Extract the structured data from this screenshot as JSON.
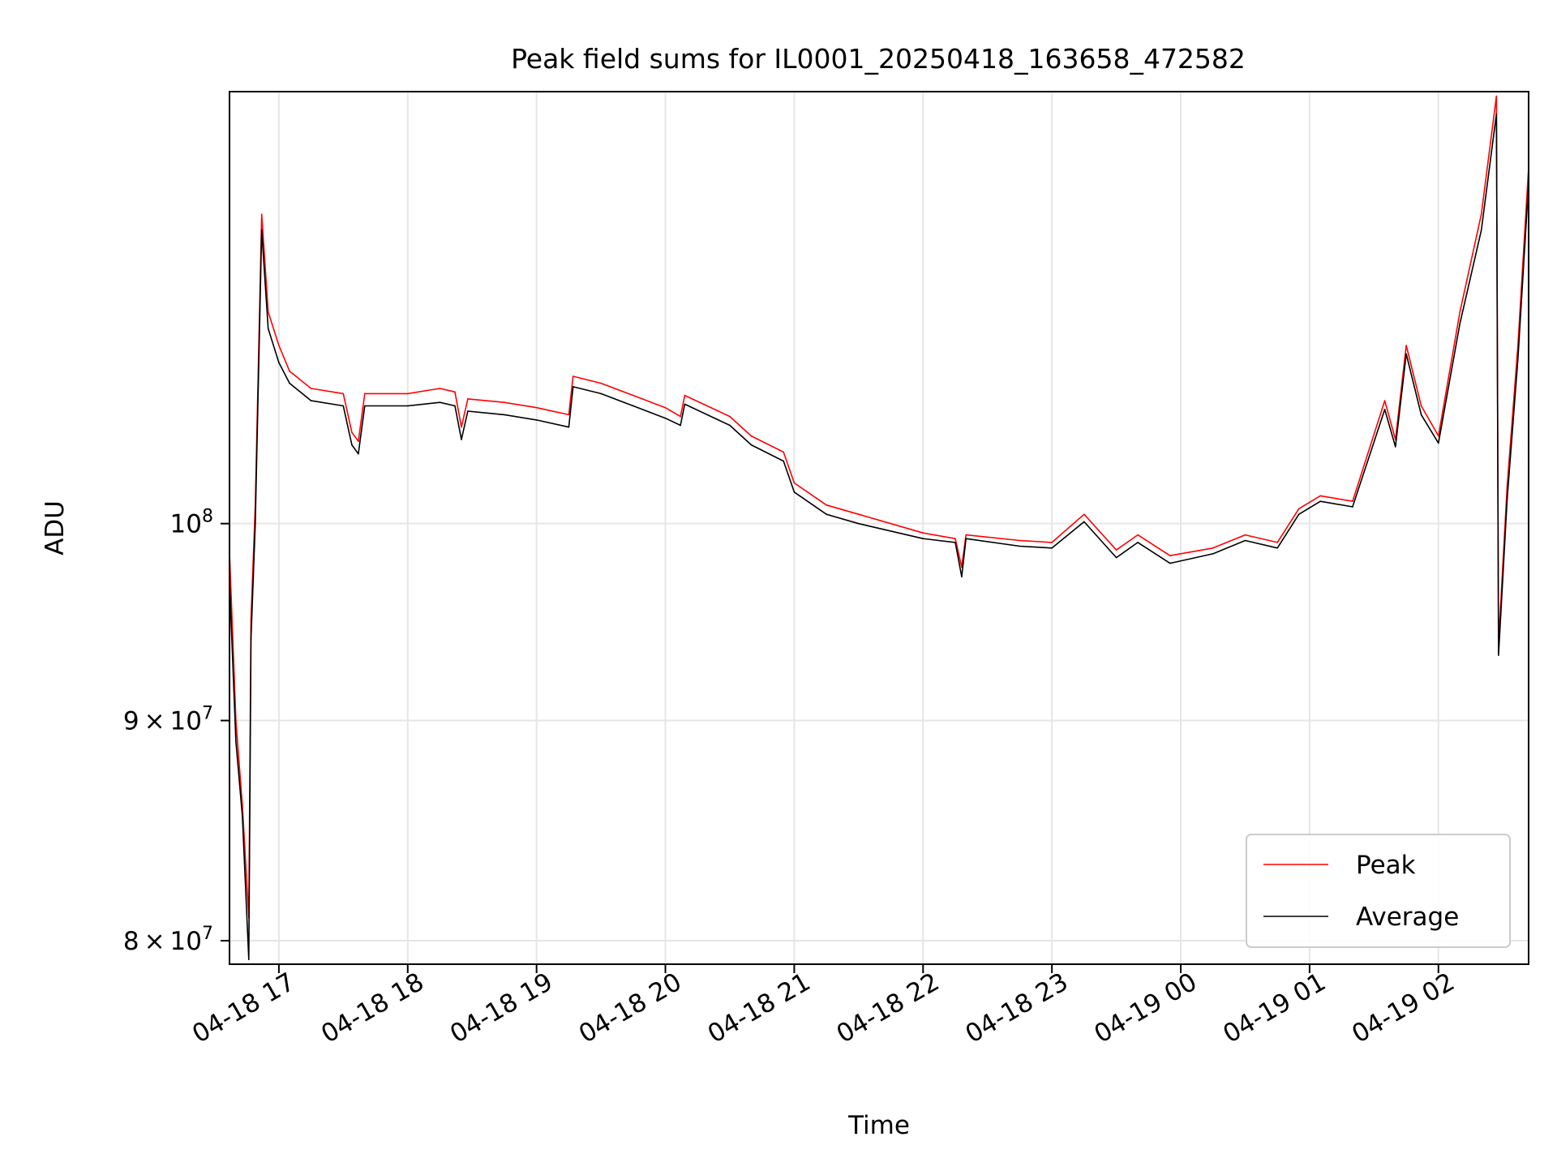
{
  "chart_data": {
    "type": "line",
    "title": "Peak field sums for IL0001_20250418_163658_472582",
    "xlabel": "Time",
    "ylabel": "ADU",
    "y_scale": "log",
    "grid": true,
    "legend_position": "lower-right",
    "xlim": [
      "2025-04-18 16:37",
      "2025-04-19 02:42"
    ],
    "ylim": [
      79000000,
      126000000
    ],
    "x_ticks": [
      {
        "value": "2025-04-18 17:00",
        "label": "04-18 17"
      },
      {
        "value": "2025-04-18 18:00",
        "label": "04-18 18"
      },
      {
        "value": "2025-04-18 19:00",
        "label": "04-18 19"
      },
      {
        "value": "2025-04-18 20:00",
        "label": "04-18 20"
      },
      {
        "value": "2025-04-18 21:00",
        "label": "04-18 21"
      },
      {
        "value": "2025-04-18 22:00",
        "label": "04-18 22"
      },
      {
        "value": "2025-04-18 23:00",
        "label": "04-18 23"
      },
      {
        "value": "2025-04-19 00:00",
        "label": "04-19 00"
      },
      {
        "value": "2025-04-19 01:00",
        "label": "04-19 01"
      },
      {
        "value": "2025-04-19 02:00",
        "label": "04-19 02"
      }
    ],
    "y_ticks": [
      {
        "value": 80000000,
        "mantissa": "8",
        "exponent": "7"
      },
      {
        "value": 90000000,
        "mantissa": "9",
        "exponent": "7"
      },
      {
        "value": 100000000,
        "mantissa": "",
        "exponent": "8"
      }
    ],
    "series": [
      {
        "name": "Peak",
        "color": "#ff0000",
        "points": [
          [
            "2025-04-18 16:37",
            98500000
          ],
          [
            "2025-04-18 16:40",
            90000000
          ],
          [
            "2025-04-18 16:43",
            86000000
          ],
          [
            "2025-04-18 16:46",
            81000000
          ],
          [
            "2025-04-18 16:47",
            95000000
          ],
          [
            "2025-04-18 16:49",
            101000000
          ],
          [
            "2025-04-18 16:52",
            118000000
          ],
          [
            "2025-04-18 16:55",
            112000000
          ],
          [
            "2025-04-18 17:00",
            110000000
          ],
          [
            "2025-04-18 17:05",
            108500000
          ],
          [
            "2025-04-18 17:15",
            107500000
          ],
          [
            "2025-04-18 17:30",
            107200000
          ],
          [
            "2025-04-18 17:34",
            105000000
          ],
          [
            "2025-04-18 17:37",
            104500000
          ],
          [
            "2025-04-18 17:40",
            107200000
          ],
          [
            "2025-04-18 18:00",
            107200000
          ],
          [
            "2025-04-18 18:15",
            107500000
          ],
          [
            "2025-04-18 18:22",
            107300000
          ],
          [
            "2025-04-18 18:25",
            105300000
          ],
          [
            "2025-04-18 18:28",
            106900000
          ],
          [
            "2025-04-18 18:45",
            106700000
          ],
          [
            "2025-04-18 19:00",
            106400000
          ],
          [
            "2025-04-18 19:15",
            106000000
          ],
          [
            "2025-04-18 19:17",
            108200000
          ],
          [
            "2025-04-18 19:30",
            107800000
          ],
          [
            "2025-04-18 19:45",
            107100000
          ],
          [
            "2025-04-18 20:00",
            106400000
          ],
          [
            "2025-04-18 20:07",
            105900000
          ],
          [
            "2025-04-18 20:09",
            107100000
          ],
          [
            "2025-04-18 20:30",
            105900000
          ],
          [
            "2025-04-18 20:40",
            104800000
          ],
          [
            "2025-04-18 20:55",
            103900000
          ],
          [
            "2025-04-18 21:00",
            102200000
          ],
          [
            "2025-04-18 21:15",
            101000000
          ],
          [
            "2025-04-18 21:30",
            100500000
          ],
          [
            "2025-04-18 22:00",
            99500000
          ],
          [
            "2025-04-18 22:15",
            99200000
          ],
          [
            "2025-04-18 22:18",
            97700000
          ],
          [
            "2025-04-18 22:20",
            99400000
          ],
          [
            "2025-04-18 22:45",
            99100000
          ],
          [
            "2025-04-18 23:00",
            99000000
          ],
          [
            "2025-04-18 23:15",
            100500000
          ],
          [
            "2025-04-18 23:30",
            98600000
          ],
          [
            "2025-04-18 23:40",
            99400000
          ],
          [
            "2025-04-18 23:55",
            98300000
          ],
          [
            "2025-04-19 00:15",
            98700000
          ],
          [
            "2025-04-19 00:30",
            99400000
          ],
          [
            "2025-04-19 00:45",
            99000000
          ],
          [
            "2025-04-19 00:55",
            100800000
          ],
          [
            "2025-04-19 01:05",
            101500000
          ],
          [
            "2025-04-19 01:20",
            101200000
          ],
          [
            "2025-04-19 01:35",
            106800000
          ],
          [
            "2025-04-19 01:40",
            104600000
          ],
          [
            "2025-04-19 01:45",
            110000000
          ],
          [
            "2025-04-19 01:52",
            106500000
          ],
          [
            "2025-04-19 02:00",
            104800000
          ],
          [
            "2025-04-19 02:10",
            112000000
          ],
          [
            "2025-04-19 02:20",
            118000000
          ],
          [
            "2025-04-19 02:27",
            125700000
          ],
          [
            "2025-04-19 02:28",
            93800000
          ],
          [
            "2025-04-19 02:32",
            102000000
          ],
          [
            "2025-04-19 02:37",
            110000000
          ],
          [
            "2025-04-19 02:42",
            121000000
          ]
        ]
      },
      {
        "name": "Average",
        "color": "#000000",
        "points": [
          [
            "2025-04-18 16:37",
            97000000
          ],
          [
            "2025-04-18 16:40",
            89000000
          ],
          [
            "2025-04-18 16:43",
            85500000
          ],
          [
            "2025-04-18 16:46",
            79200000
          ],
          [
            "2025-04-18 16:47",
            94000000
          ],
          [
            "2025-04-18 16:49",
            100000000
          ],
          [
            "2025-04-18 16:52",
            117000000
          ],
          [
            "2025-04-18 16:55",
            111000000
          ],
          [
            "2025-04-18 17:00",
            109000000
          ],
          [
            "2025-04-18 17:05",
            107800000
          ],
          [
            "2025-04-18 17:15",
            106800000
          ],
          [
            "2025-04-18 17:30",
            106500000
          ],
          [
            "2025-04-18 17:34",
            104300000
          ],
          [
            "2025-04-18 17:37",
            103800000
          ],
          [
            "2025-04-18 17:40",
            106500000
          ],
          [
            "2025-04-18 18:00",
            106500000
          ],
          [
            "2025-04-18 18:15",
            106700000
          ],
          [
            "2025-04-18 18:22",
            106500000
          ],
          [
            "2025-04-18 18:25",
            104600000
          ],
          [
            "2025-04-18 18:28",
            106200000
          ],
          [
            "2025-04-18 18:45",
            106000000
          ],
          [
            "2025-04-18 19:00",
            105700000
          ],
          [
            "2025-04-18 19:15",
            105300000
          ],
          [
            "2025-04-18 19:17",
            107600000
          ],
          [
            "2025-04-18 19:30",
            107200000
          ],
          [
            "2025-04-18 19:45",
            106500000
          ],
          [
            "2025-04-18 20:00",
            105800000
          ],
          [
            "2025-04-18 20:07",
            105400000
          ],
          [
            "2025-04-18 20:09",
            106600000
          ],
          [
            "2025-04-18 20:30",
            105400000
          ],
          [
            "2025-04-18 20:40",
            104300000
          ],
          [
            "2025-04-18 20:55",
            103400000
          ],
          [
            "2025-04-18 21:00",
            101700000
          ],
          [
            "2025-04-18 21:15",
            100500000
          ],
          [
            "2025-04-18 21:30",
            100000000
          ],
          [
            "2025-04-18 22:00",
            99200000
          ],
          [
            "2025-04-18 22:15",
            99000000
          ],
          [
            "2025-04-18 22:18",
            97200000
          ],
          [
            "2025-04-18 22:20",
            99200000
          ],
          [
            "2025-04-18 22:45",
            98800000
          ],
          [
            "2025-04-18 23:00",
            98700000
          ],
          [
            "2025-04-18 23:15",
            100100000
          ],
          [
            "2025-04-18 23:30",
            98200000
          ],
          [
            "2025-04-18 23:40",
            99000000
          ],
          [
            "2025-04-18 23:55",
            97900000
          ],
          [
            "2025-04-19 00:15",
            98400000
          ],
          [
            "2025-04-19 00:30",
            99100000
          ],
          [
            "2025-04-19 00:45",
            98700000
          ],
          [
            "2025-04-19 00:55",
            100500000
          ],
          [
            "2025-04-19 01:05",
            101200000
          ],
          [
            "2025-04-19 01:20",
            100900000
          ],
          [
            "2025-04-19 01:35",
            106300000
          ],
          [
            "2025-04-19 01:40",
            104200000
          ],
          [
            "2025-04-19 01:45",
            109500000
          ],
          [
            "2025-04-19 01:52",
            106000000
          ],
          [
            "2025-04-19 02:00",
            104400000
          ],
          [
            "2025-04-19 02:10",
            111300000
          ],
          [
            "2025-04-19 02:20",
            117000000
          ],
          [
            "2025-04-19 02:27",
            124500000
          ],
          [
            "2025-04-19 02:28",
            93200000
          ],
          [
            "2025-04-19 02:32",
            101300000
          ],
          [
            "2025-04-19 02:37",
            109200000
          ],
          [
            "2025-04-19 02:42",
            120000000
          ]
        ]
      }
    ]
  }
}
